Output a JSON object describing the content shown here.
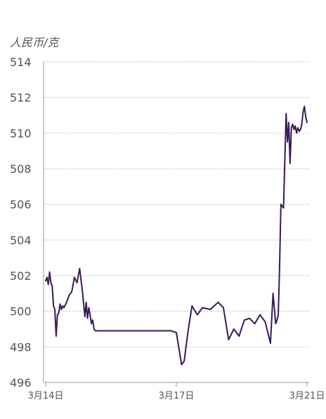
{
  "chart_data": {
    "type": "line",
    "ylabel": "人民币/克",
    "ylim": [
      496,
      514
    ],
    "yticks": [
      496,
      498,
      500,
      502,
      504,
      506,
      508,
      510,
      512,
      514
    ],
    "xlim": [
      0,
      1
    ],
    "xticks": [
      {
        "label": "3月14日",
        "x": 0.0
      },
      {
        "label": "3月17日",
        "x": 0.5
      },
      {
        "label": "3月21日",
        "x": 1.0
      }
    ],
    "grid": true,
    "series_color": "#3a1a55",
    "x": [
      0.0,
      0.005,
      0.01,
      0.015,
      0.02,
      0.025,
      0.03,
      0.035,
      0.04,
      0.045,
      0.05,
      0.055,
      0.06,
      0.065,
      0.07,
      0.08,
      0.09,
      0.1,
      0.11,
      0.12,
      0.13,
      0.14,
      0.15,
      0.155,
      0.16,
      0.165,
      0.17,
      0.175,
      0.18,
      0.185,
      0.19,
      0.195,
      0.2,
      0.205,
      0.21,
      0.215,
      0.22,
      0.23,
      0.3,
      0.4,
      0.47,
      0.48,
      0.5,
      0.52,
      0.53,
      0.545,
      0.56,
      0.58,
      0.6,
      0.63,
      0.66,
      0.68,
      0.7,
      0.72,
      0.74,
      0.76,
      0.78,
      0.8,
      0.82,
      0.84,
      0.86,
      0.87,
      0.88,
      0.885,
      0.89,
      0.895,
      0.9,
      0.91,
      0.92,
      0.925,
      0.93,
      0.935,
      0.94,
      0.945,
      0.95,
      0.955,
      0.96,
      0.965,
      0.97,
      0.975,
      0.98,
      0.985,
      0.99,
      0.995,
      1.0
    ],
    "y": [
      501.7,
      501.9,
      501.5,
      502.2,
      501.6,
      501.4,
      500.3,
      500.1,
      498.6,
      499.8,
      499.9,
      500.4,
      500.1,
      500.3,
      500.2,
      500.5,
      500.9,
      501.1,
      501.9,
      501.6,
      502.4,
      501.2,
      499.7,
      500.5,
      499.6,
      500.2,
      499.8,
      499.3,
      499.5,
      499.0,
      498.9,
      498.9,
      498.9,
      498.9,
      498.9,
      498.9,
      498.9,
      498.9,
      498.9,
      498.9,
      498.9,
      498.9,
      498.8,
      497.0,
      497.2,
      498.9,
      500.3,
      499.8,
      500.2,
      500.1,
      500.5,
      500.2,
      498.4,
      499.0,
      498.6,
      499.5,
      499.6,
      499.3,
      499.8,
      499.4,
      498.2,
      501.0,
      499.3,
      499.5,
      499.8,
      502.5,
      506.0,
      505.8,
      511.1,
      509.5,
      510.6,
      508.3,
      510.3,
      510.5,
      510.2,
      510.4,
      510.0,
      510.3,
      510.1,
      510.2,
      510.5,
      511.2,
      511.5,
      510.9,
      510.6
    ]
  }
}
